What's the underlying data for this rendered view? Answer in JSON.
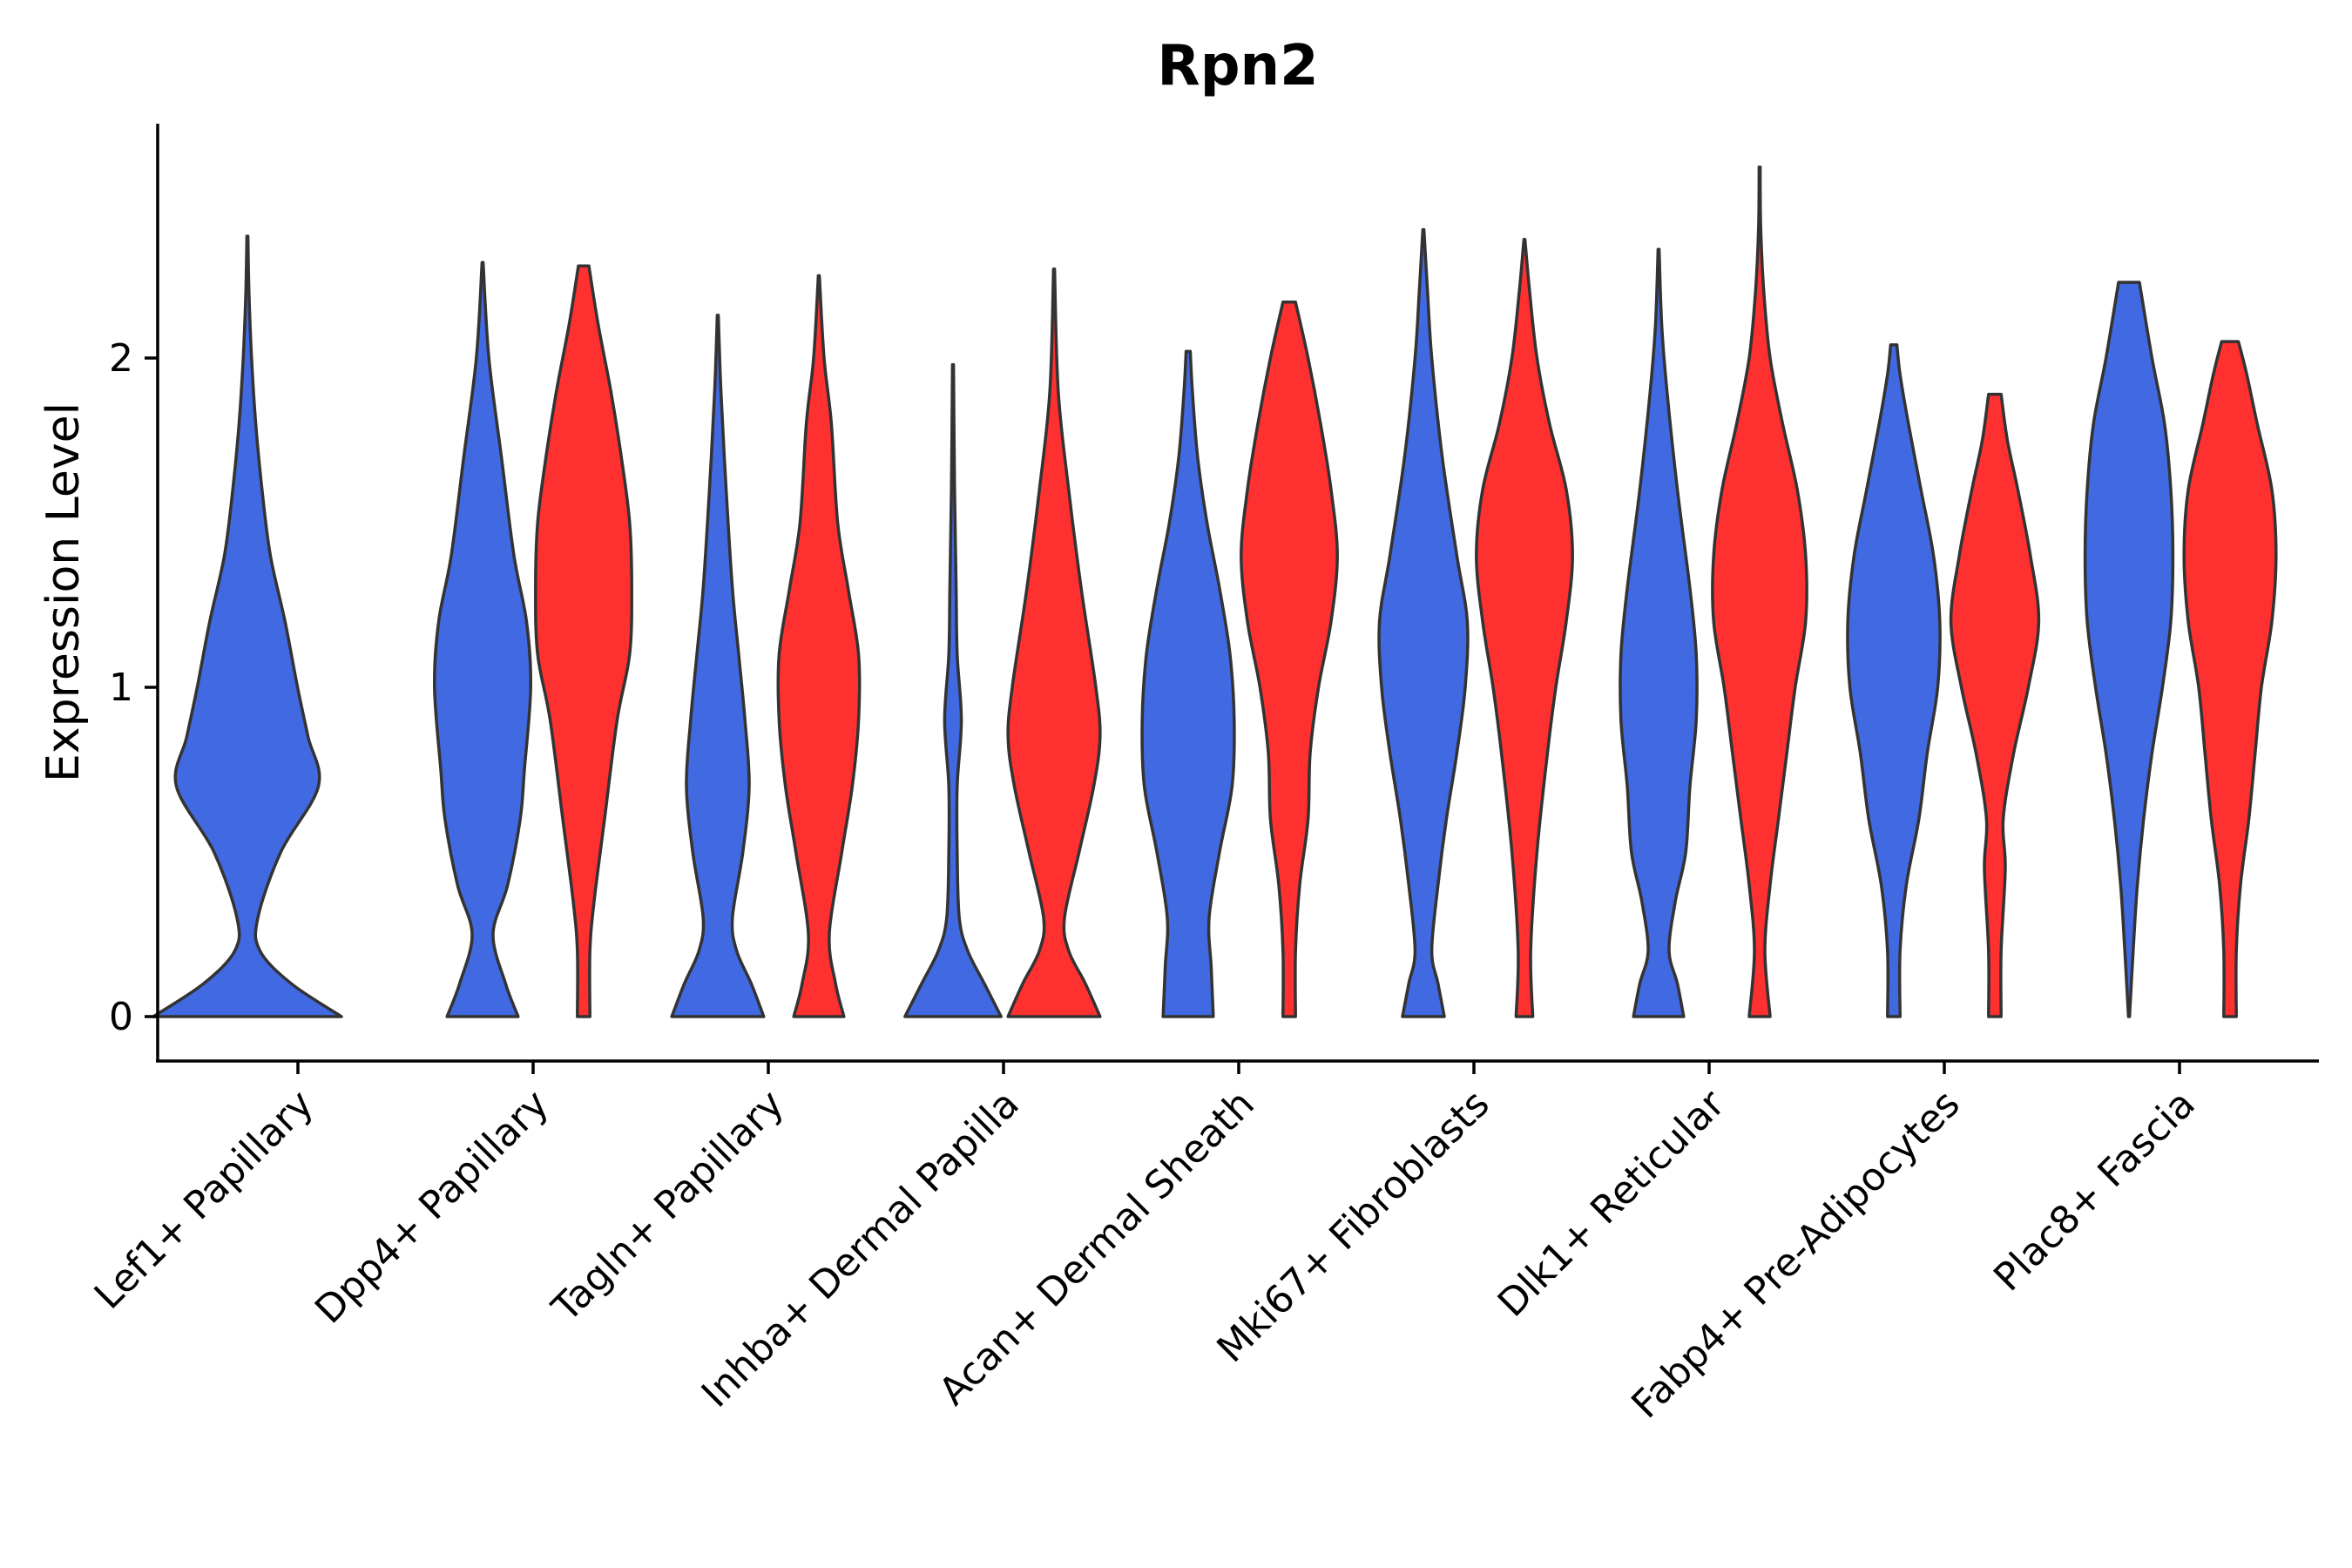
{
  "chart_data": {
    "type": "violin",
    "title": "Rpn2",
    "xlabel": "",
    "ylabel": "Expression Level",
    "ylim": [
      -0.13,
      2.72
    ],
    "yticks": [
      0,
      1,
      2
    ],
    "grid": false,
    "legend": "none",
    "series": [
      {
        "name": "group 1",
        "color": "#4169E1"
      },
      {
        "name": "group 2",
        "color": "#FF3030"
      }
    ],
    "categories": [
      "Lef1+ Papillary",
      "Dpp4+ Papillary",
      "Tagln+ Papillary",
      "Inhba+ Dermal Papilla",
      "Acan+ Dermal Sheath",
      "Mki67+ Fibroblasts",
      "Dlk1+ Reticular",
      "Fabp4+ Pre-Adipocytes",
      "Plac8+ Fascia"
    ],
    "violins": [
      {
        "category": "Lef1+ Papillary",
        "series": 0,
        "min": 0,
        "max": 2.37,
        "profile": [
          [
            0,
            0.9
          ],
          [
            0.1,
            0.42
          ],
          [
            0.2,
            0.12
          ],
          [
            0.3,
            0.1
          ],
          [
            0.5,
            0.32
          ],
          [
            0.7,
            0.68
          ],
          [
            0.85,
            0.58
          ],
          [
            1.0,
            0.48
          ],
          [
            1.2,
            0.36
          ],
          [
            1.4,
            0.22
          ],
          [
            1.6,
            0.14
          ],
          [
            1.8,
            0.08
          ],
          [
            2.0,
            0.04
          ],
          [
            2.2,
            0.015
          ],
          [
            2.37,
            0.005
          ]
        ]
      },
      {
        "category": "Dpp4+ Papillary",
        "series": 0,
        "min": 0,
        "max": 2.29,
        "profile": [
          [
            0,
            0.34
          ],
          [
            0.1,
            0.22
          ],
          [
            0.25,
            0.1
          ],
          [
            0.4,
            0.24
          ],
          [
            0.6,
            0.36
          ],
          [
            0.75,
            0.4
          ],
          [
            1.0,
            0.46
          ],
          [
            1.2,
            0.42
          ],
          [
            1.4,
            0.3
          ],
          [
            1.7,
            0.18
          ],
          [
            2.0,
            0.06
          ],
          [
            2.29,
            0.005
          ]
        ]
      },
      {
        "category": "Dpp4+ Papillary",
        "series": 1,
        "min": 0,
        "max": 2.28,
        "profile": [
          [
            0,
            0.06
          ],
          [
            0.2,
            0.06
          ],
          [
            0.35,
            0.1
          ],
          [
            0.6,
            0.2
          ],
          [
            0.9,
            0.32
          ],
          [
            1.1,
            0.44
          ],
          [
            1.3,
            0.46
          ],
          [
            1.5,
            0.44
          ],
          [
            1.7,
            0.36
          ],
          [
            1.9,
            0.26
          ],
          [
            2.1,
            0.14
          ],
          [
            2.28,
            0.05
          ]
        ]
      },
      {
        "category": "Tagln+ Papillary",
        "series": 0,
        "min": 0,
        "max": 2.13,
        "profile": [
          [
            0,
            0.44
          ],
          [
            0.1,
            0.32
          ],
          [
            0.2,
            0.18
          ],
          [
            0.3,
            0.14
          ],
          [
            0.5,
            0.24
          ],
          [
            0.7,
            0.3
          ],
          [
            0.9,
            0.26
          ],
          [
            1.1,
            0.2
          ],
          [
            1.3,
            0.14
          ],
          [
            1.6,
            0.08
          ],
          [
            1.9,
            0.03
          ],
          [
            2.13,
            0.005
          ]
        ]
      },
      {
        "category": "Tagln+ Papillary",
        "series": 1,
        "min": 0,
        "max": 2.25,
        "profile": [
          [
            0,
            0.24
          ],
          [
            0.1,
            0.16
          ],
          [
            0.25,
            0.1
          ],
          [
            0.5,
            0.22
          ],
          [
            0.7,
            0.32
          ],
          [
            0.9,
            0.38
          ],
          [
            1.1,
            0.38
          ],
          [
            1.3,
            0.28
          ],
          [
            1.5,
            0.18
          ],
          [
            1.8,
            0.12
          ],
          [
            2.0,
            0.05
          ],
          [
            2.25,
            0.005
          ]
        ]
      },
      {
        "category": "Inhba+ Dermal Papilla",
        "series": 0,
        "min": 0,
        "max": 1.98,
        "profile": [
          [
            0,
            0.46
          ],
          [
            0.1,
            0.3
          ],
          [
            0.2,
            0.14
          ],
          [
            0.3,
            0.06
          ],
          [
            0.5,
            0.04
          ],
          [
            0.7,
            0.04
          ],
          [
            0.9,
            0.08
          ],
          [
            1.1,
            0.04
          ],
          [
            1.3,
            0.03
          ],
          [
            1.6,
            0.015
          ],
          [
            1.98,
            0.005
          ]
        ]
      },
      {
        "category": "Inhba+ Dermal Papilla",
        "series": 1,
        "min": 0,
        "max": 2.27,
        "profile": [
          [
            0,
            0.44
          ],
          [
            0.1,
            0.3
          ],
          [
            0.2,
            0.14
          ],
          [
            0.3,
            0.1
          ],
          [
            0.5,
            0.24
          ],
          [
            0.7,
            0.38
          ],
          [
            0.85,
            0.44
          ],
          [
            1.0,
            0.4
          ],
          [
            1.3,
            0.26
          ],
          [
            1.6,
            0.14
          ],
          [
            1.9,
            0.04
          ],
          [
            2.27,
            0.005
          ]
        ]
      },
      {
        "category": "Acan+ Dermal Sheath",
        "series": 0,
        "min": 0,
        "max": 2.02,
        "profile": [
          [
            0,
            0.24
          ],
          [
            0.15,
            0.22
          ],
          [
            0.3,
            0.2
          ],
          [
            0.5,
            0.3
          ],
          [
            0.7,
            0.42
          ],
          [
            0.9,
            0.44
          ],
          [
            1.1,
            0.4
          ],
          [
            1.3,
            0.3
          ],
          [
            1.5,
            0.18
          ],
          [
            1.7,
            0.09
          ],
          [
            1.9,
            0.04
          ],
          [
            2.02,
            0.02
          ]
        ]
      },
      {
        "category": "Acan+ Dermal Sheath",
        "series": 1,
        "min": 0,
        "max": 2.17,
        "profile": [
          [
            0,
            0.06
          ],
          [
            0.2,
            0.06
          ],
          [
            0.4,
            0.1
          ],
          [
            0.6,
            0.18
          ],
          [
            0.8,
            0.2
          ],
          [
            1.0,
            0.28
          ],
          [
            1.2,
            0.4
          ],
          [
            1.4,
            0.46
          ],
          [
            1.6,
            0.4
          ],
          [
            1.8,
            0.3
          ],
          [
            2.0,
            0.18
          ],
          [
            2.17,
            0.06
          ]
        ]
      },
      {
        "category": "Mki67+ Fibroblasts",
        "series": 0,
        "min": 0,
        "max": 2.39,
        "profile": [
          [
            0,
            0.2
          ],
          [
            0.1,
            0.14
          ],
          [
            0.2,
            0.08
          ],
          [
            0.4,
            0.14
          ],
          [
            0.6,
            0.22
          ],
          [
            0.8,
            0.32
          ],
          [
            1.0,
            0.4
          ],
          [
            1.2,
            0.42
          ],
          [
            1.4,
            0.32
          ],
          [
            1.7,
            0.18
          ],
          [
            2.0,
            0.08
          ],
          [
            2.2,
            0.04
          ],
          [
            2.39,
            0.005
          ]
        ]
      },
      {
        "category": "Mki67+ Fibroblasts",
        "series": 1,
        "min": 0,
        "max": 2.36,
        "profile": [
          [
            0,
            0.08
          ],
          [
            0.2,
            0.06
          ],
          [
            0.5,
            0.12
          ],
          [
            0.8,
            0.22
          ],
          [
            1.0,
            0.3
          ],
          [
            1.2,
            0.4
          ],
          [
            1.4,
            0.46
          ],
          [
            1.6,
            0.4
          ],
          [
            1.8,
            0.24
          ],
          [
            2.0,
            0.12
          ],
          [
            2.2,
            0.05
          ],
          [
            2.36,
            0.005
          ]
        ]
      },
      {
        "category": "Dlk1+ Reticular",
        "series": 0,
        "min": 0,
        "max": 2.33,
        "profile": [
          [
            0,
            0.24
          ],
          [
            0.1,
            0.18
          ],
          [
            0.2,
            0.1
          ],
          [
            0.35,
            0.16
          ],
          [
            0.5,
            0.26
          ],
          [
            0.7,
            0.3
          ],
          [
            0.9,
            0.36
          ],
          [
            1.1,
            0.36
          ],
          [
            1.3,
            0.3
          ],
          [
            1.6,
            0.18
          ],
          [
            1.9,
            0.08
          ],
          [
            2.1,
            0.03
          ],
          [
            2.33,
            0.005
          ]
        ]
      },
      {
        "category": "Dlk1+ Reticular",
        "series": 1,
        "min": 0,
        "max": 2.58,
        "profile": [
          [
            0,
            0.1
          ],
          [
            0.2,
            0.05
          ],
          [
            0.4,
            0.1
          ],
          [
            0.6,
            0.18
          ],
          [
            0.8,
            0.26
          ],
          [
            1.0,
            0.34
          ],
          [
            1.2,
            0.44
          ],
          [
            1.4,
            0.44
          ],
          [
            1.6,
            0.36
          ],
          [
            1.8,
            0.22
          ],
          [
            2.0,
            0.1
          ],
          [
            2.2,
            0.04
          ],
          [
            2.4,
            0.01
          ],
          [
            2.58,
            0.005
          ]
        ]
      },
      {
        "category": "Fabp4+ Pre-Adipocytes",
        "series": 0,
        "min": 0,
        "max": 2.04,
        "profile": [
          [
            0,
            0.06
          ],
          [
            0.2,
            0.06
          ],
          [
            0.4,
            0.12
          ],
          [
            0.6,
            0.24
          ],
          [
            0.8,
            0.32
          ],
          [
            1.0,
            0.42
          ],
          [
            1.2,
            0.44
          ],
          [
            1.4,
            0.38
          ],
          [
            1.6,
            0.26
          ],
          [
            1.8,
            0.14
          ],
          [
            1.95,
            0.06
          ],
          [
            2.04,
            0.03
          ]
        ]
      },
      {
        "category": "Fabp4+ Pre-Adipocytes",
        "series": 1,
        "min": 0,
        "max": 1.89,
        "profile": [
          [
            0,
            0.06
          ],
          [
            0.2,
            0.06
          ],
          [
            0.45,
            0.1
          ],
          [
            0.6,
            0.08
          ],
          [
            0.8,
            0.18
          ],
          [
            1.0,
            0.32
          ],
          [
            1.2,
            0.42
          ],
          [
            1.4,
            0.34
          ],
          [
            1.6,
            0.22
          ],
          [
            1.75,
            0.12
          ],
          [
            1.89,
            0.06
          ]
        ]
      },
      {
        "category": "Plac8+ Fascia",
        "series": 0,
        "min": 0,
        "max": 2.23,
        "profile": [
          [
            0,
            0.005
          ],
          [
            0.2,
            0.04
          ],
          [
            0.4,
            0.08
          ],
          [
            0.6,
            0.14
          ],
          [
            0.8,
            0.22
          ],
          [
            1.0,
            0.32
          ],
          [
            1.2,
            0.4
          ],
          [
            1.4,
            0.42
          ],
          [
            1.6,
            0.4
          ],
          [
            1.8,
            0.34
          ],
          [
            2.0,
            0.22
          ],
          [
            2.23,
            0.1
          ]
        ]
      },
      {
        "category": "Plac8+ Fascia",
        "series": 1,
        "min": 0,
        "max": 2.05,
        "profile": [
          [
            0,
            0.06
          ],
          [
            0.2,
            0.06
          ],
          [
            0.4,
            0.1
          ],
          [
            0.6,
            0.18
          ],
          [
            0.8,
            0.24
          ],
          [
            1.0,
            0.3
          ],
          [
            1.2,
            0.4
          ],
          [
            1.4,
            0.44
          ],
          [
            1.6,
            0.4
          ],
          [
            1.8,
            0.26
          ],
          [
            1.95,
            0.16
          ],
          [
            2.05,
            0.08
          ]
        ]
      }
    ]
  }
}
